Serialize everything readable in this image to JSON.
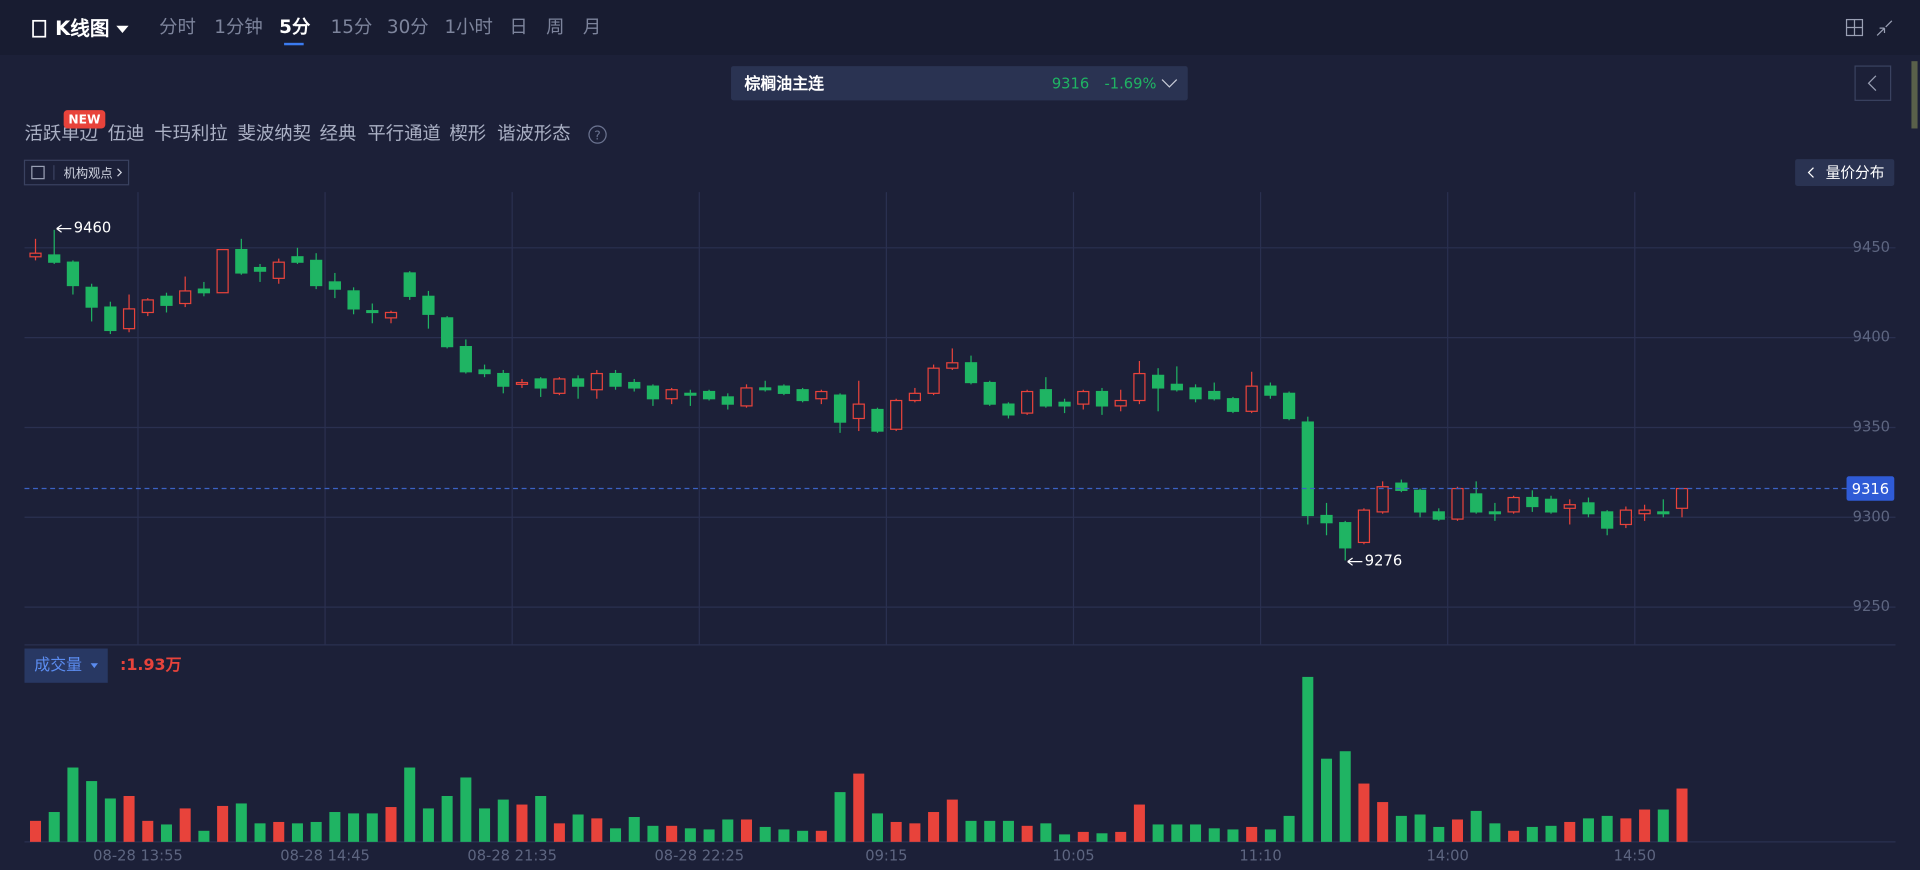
{
  "toolbar": {
    "title": "K线图",
    "periods": [
      "分时",
      "1分钟",
      "5分",
      "15分",
      "30分",
      "1小时",
      "日",
      "周",
      "月"
    ],
    "active_period": 2
  },
  "ticker": {
    "name": "棕榈油主连",
    "change": "-1.69%"
  },
  "indicators": {
    "badge": "NEW",
    "items": [
      "活跃单边",
      "伍迪",
      "卡玛利拉",
      "斐波纳契",
      "经典",
      "平行通道",
      "楔形",
      "谐波形态"
    ],
    "help": "?"
  },
  "institution": "机构观点",
  "volume_profile": "量价分布",
  "chart_data": {
    "type": "candlestick",
    "categories": [
      null,
      null,
      null,
      null,
      null,
      null,
      "08-28 13:55",
      null,
      null,
      null,
      null,
      null,
      null,
      null,
      null,
      null,
      "08-28 14:45",
      null,
      null,
      null,
      null,
      null,
      null,
      null,
      null,
      null,
      "08-28 21:35",
      null,
      null,
      null,
      null,
      null,
      null,
      null,
      null,
      null,
      "08-28 22:25",
      null,
      null,
      null,
      null,
      null,
      null,
      null,
      null,
      null,
      "09:15",
      null,
      null,
      null,
      null,
      null,
      null,
      null,
      null,
      null,
      "10:05",
      null,
      null,
      null,
      null,
      null,
      null,
      null,
      null,
      null,
      "11:10",
      null,
      null,
      null,
      null,
      null,
      null,
      null,
      null,
      null,
      "14:00",
      null,
      null,
      null,
      null,
      null,
      null,
      null,
      null,
      null,
      "14:50",
      null,
      null
    ],
    "open": [
      9445,
      9446,
      9442,
      9428,
      9417,
      9405,
      9414,
      9423,
      9419,
      9427,
      9425,
      9449,
      9439,
      9433,
      9445,
      9443,
      9431,
      9426,
      9415,
      9411,
      9436,
      9423,
      9411,
      9395,
      9382,
      9380,
      9374,
      9377,
      9369,
      9377,
      9371,
      9380,
      9375,
      9373,
      9366,
      9369,
      9370,
      9367,
      9362,
      9372,
      9373,
      9371,
      9366,
      9368,
      9355,
      9360,
      9349,
      9365,
      9369,
      9383,
      9386,
      9375,
      9363,
      9358,
      9371,
      9364,
      9363,
      9370,
      9362,
      9365,
      9379,
      9374,
      9372,
      9370,
      9366,
      9359,
      9373,
      9369,
      9353,
      9301,
      9297,
      9286,
      9303,
      9319,
      9315,
      9303,
      9299,
      9313,
      9303,
      9303,
      9311,
      9310,
      9305,
      9308,
      9303,
      9296,
      9302,
      9303,
      9305
    ],
    "high": [
      9455,
      9460,
      9443,
      9430,
      9420,
      9424,
      9422,
      9425,
      9434,
      9431,
      9449,
      9455,
      9441,
      9444,
      9450,
      9447,
      9436,
      9428,
      9419,
      9415,
      9437,
      9426,
      9412,
      9399,
      9385,
      9382,
      9377,
      9378,
      9378,
      9379,
      9382,
      9382,
      9377,
      9374,
      9372,
      9371,
      9371,
      9369,
      9374,
      9376,
      9374,
      9372,
      9371,
      9369,
      9376,
      9361,
      9366,
      9372,
      9385,
      9394,
      9390,
      9376,
      9364,
      9371,
      9378,
      9366,
      9371,
      9372,
      9371,
      9387,
      9383,
      9384,
      9374,
      9375,
      9367,
      9381,
      9375,
      9370,
      9356,
      9308,
      9298,
      9305,
      9320,
      9321,
      9316,
      9305,
      9317,
      9320,
      9308,
      9312,
      9315,
      9312,
      9310,
      9311,
      9304,
      9306,
      9307,
      9310,
      9316
    ],
    "low": [
      9443,
      9441,
      9424,
      9409,
      9402,
      9403,
      9412,
      9414,
      9417,
      9423,
      9425,
      9435,
      9431,
      9430,
      9441,
      9427,
      9422,
      9413,
      9408,
      9408,
      9421,
      9405,
      9394,
      9380,
      9378,
      9369,
      9372,
      9367,
      9368,
      9366,
      9366,
      9371,
      9370,
      9362,
      9363,
      9362,
      9365,
      9360,
      9361,
      9370,
      9368,
      9364,
      9363,
      9347,
      9348,
      9347,
      9348,
      9364,
      9368,
      9382,
      9374,
      9362,
      9355,
      9357,
      9361,
      9358,
      9360,
      9357,
      9359,
      9363,
      9359,
      9370,
      9364,
      9365,
      9358,
      9358,
      9366,
      9354,
      9296,
      9290,
      9276,
      9285,
      9302,
      9314,
      9300,
      9298,
      9298,
      9302,
      9298,
      9302,
      9303,
      9302,
      9296,
      9300,
      9290,
      9294,
      9298,
      9300,
      9300
    ],
    "close": [
      9447,
      9442,
      9429,
      9417,
      9404,
      9416,
      9421,
      9418,
      9426,
      9425,
      9449,
      9436,
      9437,
      9442,
      9442,
      9429,
      9427,
      9416,
      9414,
      9414,
      9423,
      9413,
      9395,
      9381,
      9380,
      9373,
      9375,
      9372,
      9377,
      9373,
      9380,
      9373,
      9372,
      9366,
      9371,
      9368,
      9366,
      9363,
      9372,
      9371,
      9369,
      9365,
      9370,
      9353,
      9363,
      9348,
      9365,
      9369,
      9383,
      9386,
      9375,
      9363,
      9357,
      9370,
      9362,
      9362,
      9370,
      9362,
      9365,
      9380,
      9372,
      9371,
      9366,
      9366,
      9359,
      9373,
      9368,
      9355,
      9301,
      9297,
      9283,
      9304,
      9317,
      9315,
      9303,
      9299,
      9316,
      9303,
      9302,
      9311,
      9306,
      9303,
      9307,
      9302,
      9294,
      9304,
      9304,
      9302,
      9316
    ],
    "ylim": [
      9229,
      9481
    ],
    "yticks": [
      9250,
      9300,
      9350,
      9400,
      9450
    ],
    "grid": true,
    "up_color": "#e8433b",
    "down_color": "#1fb463",
    "volume": {
      "name": "成交量",
      "value_label": ":1.93万",
      "ylim": [
        0,
        6.2
      ],
      "values": [
        0.76,
        1.08,
        2.69,
        2.2,
        1.57,
        1.66,
        0.76,
        0.63,
        1.21,
        0.4,
        1.3,
        1.39,
        0.67,
        0.72,
        0.67,
        0.72,
        1.08,
        1.03,
        1.03,
        1.26,
        2.69,
        1.21,
        1.66,
        2.33,
        1.21,
        1.53,
        1.35,
        1.66,
        0.67,
        0.99,
        0.85,
        0.49,
        0.9,
        0.58,
        0.58,
        0.49,
        0.45,
        0.81,
        0.81,
        0.54,
        0.45,
        0.4,
        0.4,
        1.8,
        2.47,
        1.03,
        0.72,
        0.67,
        1.08,
        1.53,
        0.76,
        0.76,
        0.76,
        0.58,
        0.67,
        0.27,
        0.36,
        0.31,
        0.36,
        1.35,
        0.63,
        0.63,
        0.63,
        0.49,
        0.45,
        0.54,
        0.45,
        0.94,
        5.97,
        3.01,
        3.28,
        2.11,
        1.44,
        0.94,
        0.99,
        0.54,
        0.81,
        1.12,
        0.67,
        0.4,
        0.54,
        0.58,
        0.72,
        0.85,
        0.94,
        0.85,
        1.17,
        1.17,
        1.93
      ]
    }
  }
}
